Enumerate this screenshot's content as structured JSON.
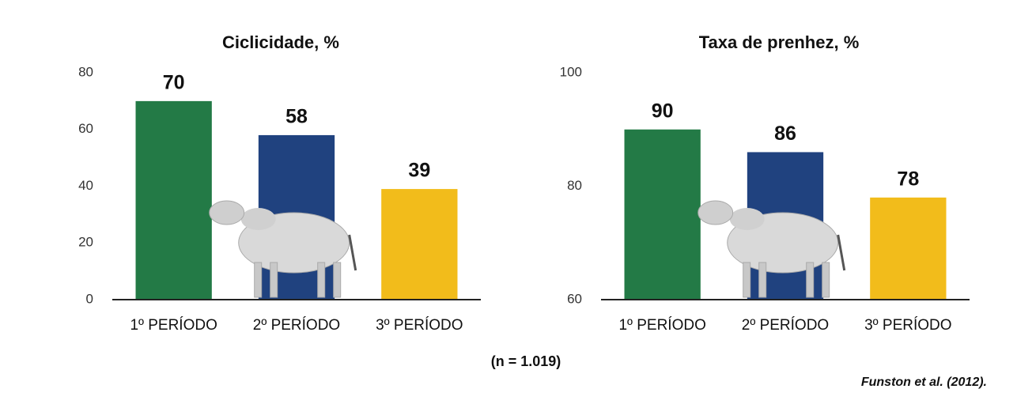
{
  "chart_data": [
    {
      "type": "bar",
      "title": "Ciclicidade, %",
      "categories": [
        "1º PERÍODO",
        "2º PERÍODO",
        "3º PERÍODO"
      ],
      "values": [
        70,
        58,
        39
      ],
      "colors": [
        "#237a46",
        "#20427f",
        "#f2bc1b"
      ],
      "ylim": [
        0,
        80
      ],
      "yticks": [
        0,
        20,
        40,
        60,
        80
      ],
      "grid": false
    },
    {
      "type": "bar",
      "title": "Taxa de prenhez, %",
      "categories": [
        "1º PERÍODO",
        "2º PERÍODO",
        "3º PERÍODO"
      ],
      "values": [
        90,
        86,
        78
      ],
      "colors": [
        "#237a46",
        "#20427f",
        "#f2bc1b"
      ],
      "ylim": [
        60,
        100
      ],
      "yticks": [
        60,
        80,
        100
      ],
      "grid": false
    }
  ],
  "note": "(n = 1.019)",
  "source": "Funston et al. (2012)."
}
